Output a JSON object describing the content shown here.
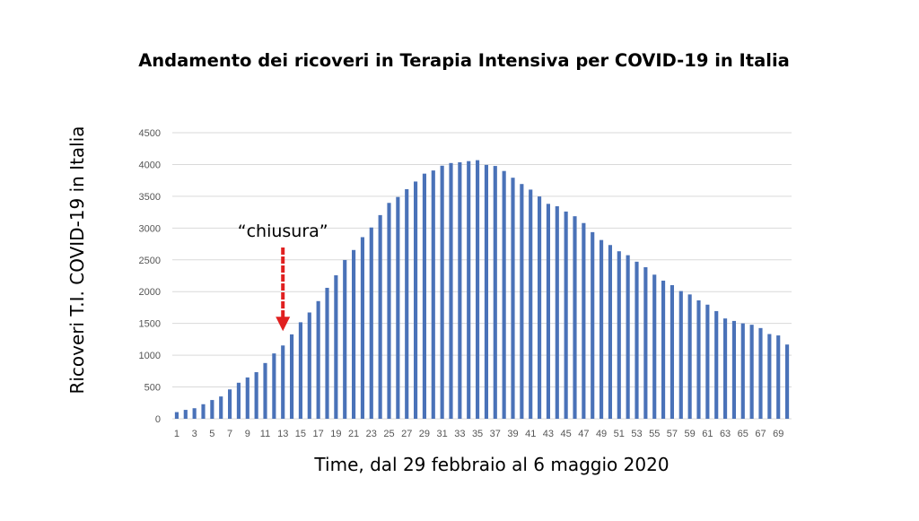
{
  "chart_data": {
    "type": "bar",
    "title": "Andamento dei ricoveri in Terapia Intensiva per COVID-19 in Italia",
    "xlabel": "Time, dal 29 febbraio al 6 maggio 2020",
    "ylabel": "Ricoveri T.I. COVID-19 in Italia",
    "ylim": [
      0,
      4500
    ],
    "yticks": [
      0,
      500,
      1000,
      1500,
      2000,
      2500,
      3000,
      3500,
      4000,
      4500
    ],
    "grid": true,
    "legend": "none",
    "bar_color": "#4a72b8",
    "categories": [
      1,
      2,
      3,
      4,
      5,
      6,
      7,
      8,
      9,
      10,
      11,
      12,
      13,
      14,
      15,
      16,
      17,
      18,
      19,
      20,
      21,
      22,
      23,
      24,
      25,
      26,
      27,
      28,
      29,
      30,
      31,
      32,
      33,
      34,
      35,
      36,
      37,
      38,
      39,
      40,
      41,
      42,
      43,
      44,
      45,
      46,
      47,
      48,
      49,
      50,
      51,
      52,
      53,
      54,
      55,
      56,
      57,
      58,
      59,
      60,
      61,
      62,
      63,
      64,
      65,
      66,
      67,
      68,
      69,
      70
    ],
    "x_tick_labels": [
      1,
      3,
      5,
      7,
      9,
      11,
      13,
      15,
      17,
      19,
      21,
      23,
      25,
      27,
      29,
      31,
      33,
      35,
      37,
      39,
      41,
      43,
      45,
      47,
      49,
      51,
      53,
      55,
      57,
      59,
      61,
      63,
      65,
      67,
      69
    ],
    "values": [
      105,
      140,
      166,
      229,
      295,
      351,
      462,
      567,
      650,
      733,
      877,
      1028,
      1153,
      1328,
      1518,
      1672,
      1851,
      2060,
      2257,
      2498,
      2655,
      2857,
      3009,
      3204,
      3396,
      3489,
      3612,
      3732,
      3856,
      3906,
      3981,
      4023,
      4035,
      4053,
      4068,
      3994,
      3977,
      3898,
      3792,
      3693,
      3605,
      3497,
      3381,
      3343,
      3260,
      3186,
      3079,
      2936,
      2812,
      2733,
      2635,
      2573,
      2471,
      2384,
      2267,
      2173,
      2102,
      2009,
      1956,
      1863,
      1795,
      1694,
      1578,
      1539,
      1501,
      1479,
      1427,
      1333,
      1311,
      1168
    ],
    "annotations": [
      {
        "text": "“chiusura”",
        "category": 13,
        "type": "arrow",
        "color": "#e02020"
      }
    ]
  }
}
